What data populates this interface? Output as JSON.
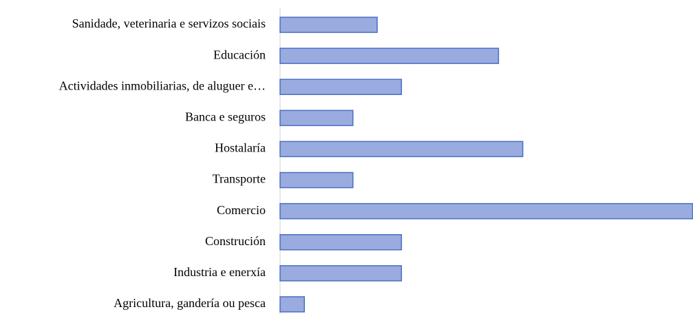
{
  "chart_data": {
    "type": "barh",
    "categories": [
      "Sanidade, veterinaria e servizos sociais",
      "Educación",
      "Actividades inmobiliarias, de aluguer e…",
      "Banca e seguros",
      "Hostalaría",
      "Transporte",
      "Comercio",
      "Construción",
      "Industria e enerxía",
      "Agricultura, gandería ou pesca"
    ],
    "values": [
      4,
      9,
      5,
      3,
      10,
      3,
      17,
      5,
      5,
      1
    ],
    "color": "#9aabe0",
    "edgecolor": "#4a6fc0",
    "xlim": [
      0,
      17
    ]
  }
}
